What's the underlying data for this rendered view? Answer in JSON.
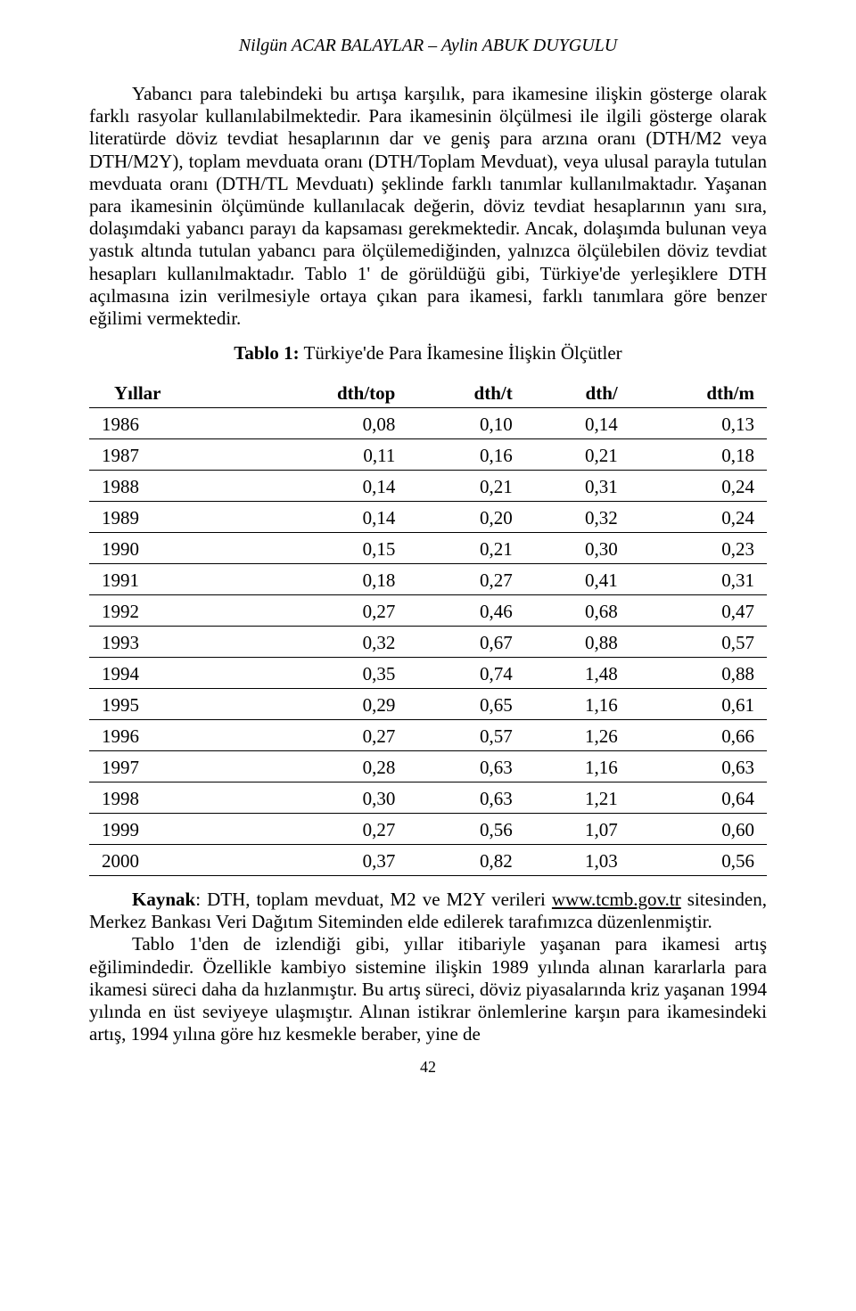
{
  "header": {
    "authors": "Nilgün ACAR BALAYLAR – Aylin ABUK DUYGULU"
  },
  "paragraphs": {
    "p1": "Yabancı para talebindeki bu artışa karşılık, para ikamesine ilişkin gösterge olarak farklı rasyolar kullanılabilmektedir. Para ikamesinin ölçülmesi ile ilgili gösterge olarak literatürde döviz tevdiat hesaplarının dar ve geniş para arzına oranı (DTH/M2 veya DTH/M2Y), toplam mevduata oranı (DTH/Toplam Mevduat), veya ulusal parayla tutulan mevduata oranı (DTH/TL Mevduatı) şeklinde farklı tanımlar kullanılmaktadır. Yaşanan para ikamesinin ölçümünde kullanılacak değerin, döviz tevdiat hesaplarının yanı sıra, dolaşımdaki yabancı parayı da kapsaması gerekmektedir. Ancak, dolaşımda bulunan veya yastık altında tutulan yabancı para ölçülemediğinden, yalnızca ölçülebilen döviz tevdiat hesapları kullanılmaktadır. Tablo 1' de görüldüğü gibi, Türkiye'de yerleşiklere DTH açılmasına izin verilmesiyle ortaya çıkan para ikamesi, farklı tanımlara göre benzer eğilimi vermektedir.",
    "p2": "Tablo 1'den de izlendiği gibi, yıllar itibariyle yaşanan para ikamesi artış eğilimindedir. Özellikle kambiyo sistemine ilişkin 1989 yılında alınan kararlarla para ikamesi süreci daha da hızlanmıştır. Bu  artış süreci,  döviz piyasalarında kriz yaşanan 1994 yılında en üst seviyeye ulaşmıştır. Alınan istikrar önlemlerine karşın para ikamesindeki artış, 1994 yılına göre hız kesmekle beraber, yine de"
  },
  "table": {
    "title_bold": "Tablo 1:",
    "title_rest": " Türkiye'de Para İkamesine İlişkin Ölçütler",
    "columns": {
      "c0": "Yıllar",
      "c1": "dth/top",
      "c2": "dth/t",
      "c3": "dth/",
      "c4": "dth/m"
    },
    "rows": [
      {
        "c0": "1986",
        "c1": "0,08",
        "c2": "0,10",
        "c3": "0,14",
        "c4": "0,13"
      },
      {
        "c0": "1987",
        "c1": "0,11",
        "c2": "0,16",
        "c3": "0,21",
        "c4": "0,18"
      },
      {
        "c0": "1988",
        "c1": "0,14",
        "c2": "0,21",
        "c3": "0,31",
        "c4": "0,24"
      },
      {
        "c0": "1989",
        "c1": "0,14",
        "c2": "0,20",
        "c3": "0,32",
        "c4": "0,24"
      },
      {
        "c0": "1990",
        "c1": "0,15",
        "c2": "0,21",
        "c3": "0,30",
        "c4": "0,23"
      },
      {
        "c0": "1991",
        "c1": "0,18",
        "c2": "0,27",
        "c3": "0,41",
        "c4": "0,31"
      },
      {
        "c0": "1992",
        "c1": "0,27",
        "c2": "0,46",
        "c3": "0,68",
        "c4": "0,47"
      },
      {
        "c0": "1993",
        "c1": "0,32",
        "c2": "0,67",
        "c3": "0,88",
        "c4": "0,57"
      },
      {
        "c0": "1994",
        "c1": "0,35",
        "c2": "0,74",
        "c3": "1,48",
        "c4": "0,88"
      },
      {
        "c0": "1995",
        "c1": "0,29",
        "c2": "0,65",
        "c3": "1,16",
        "c4": "0,61"
      },
      {
        "c0": "1996",
        "c1": "0,27",
        "c2": "0,57",
        "c3": "1,26",
        "c4": "0,66"
      },
      {
        "c0": "1997",
        "c1": "0,28",
        "c2": "0,63",
        "c3": "1,16",
        "c4": "0,63"
      },
      {
        "c0": "1998",
        "c1": "0,30",
        "c2": "0,63",
        "c3": "1,21",
        "c4": "0,64"
      },
      {
        "c0": "1999",
        "c1": "0,27",
        "c2": "0,56",
        "c3": "1,07",
        "c4": "0,60"
      },
      {
        "c0": "2000",
        "c1": "0,37",
        "c2": "0,82",
        "c3": "1,03",
        "c4": "0,56"
      }
    ]
  },
  "source": {
    "label": "Kaynak",
    "text_before": ": DTH, toplam mevduat, M2 ve M2Y verileri ",
    "link": "www.tcmb.gov.tr",
    "text_after": " sitesinden, Merkez Bankası Veri Dağıtım Siteminden elde edilerek tarafımızca düzenlenmiştir."
  },
  "page_number": "42"
}
